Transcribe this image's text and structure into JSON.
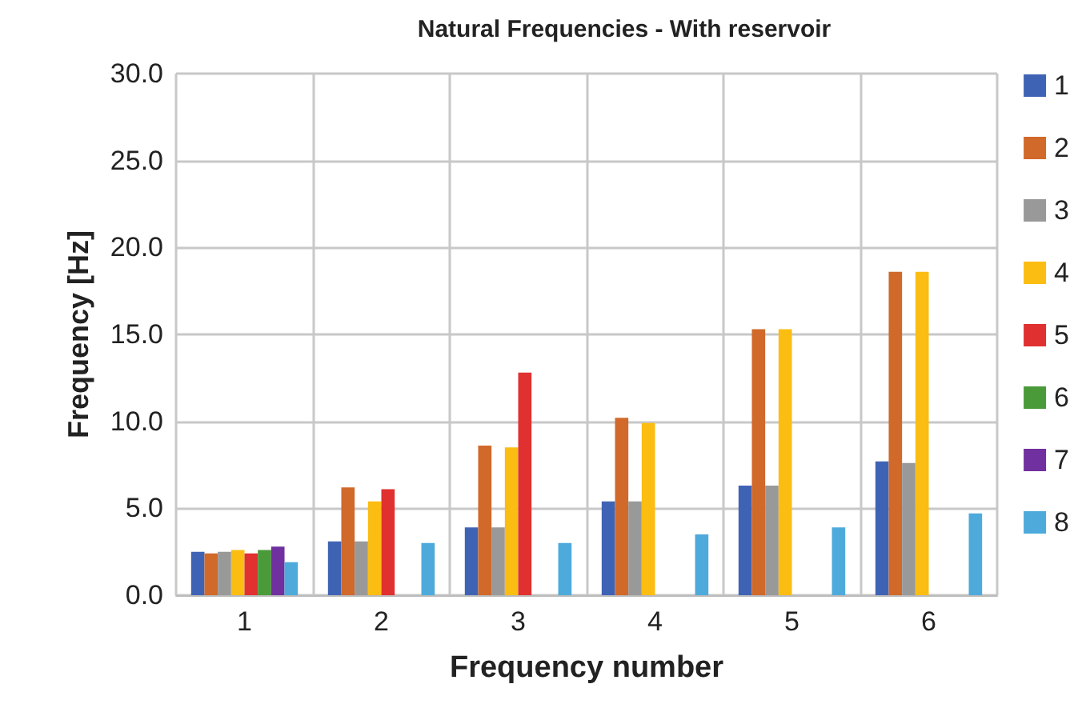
{
  "chart_data": {
    "type": "bar",
    "title": "Natural Frequencies - With reservoir",
    "xlabel": "Frequency number",
    "ylabel": "Frequency [Hz]",
    "categories": [
      "1",
      "2",
      "3",
      "4",
      "5",
      "6"
    ],
    "series": [
      {
        "name": "1",
        "color": "#3f63b4",
        "values": [
          2.5,
          3.1,
          3.9,
          5.4,
          6.3,
          7.7
        ]
      },
      {
        "name": "2",
        "color": "#d0692a",
        "values": [
          2.4,
          6.2,
          8.6,
          10.2,
          15.3,
          18.6
        ]
      },
      {
        "name": "3",
        "color": "#999999",
        "values": [
          2.5,
          3.1,
          3.9,
          5.4,
          6.3,
          7.6
        ]
      },
      {
        "name": "4",
        "color": "#fbbd12",
        "values": [
          2.6,
          5.4,
          8.5,
          9.9,
          15.3,
          18.6
        ]
      },
      {
        "name": "5",
        "color": "#e03030",
        "values": [
          2.4,
          6.1,
          12.8,
          null,
          null,
          null
        ]
      },
      {
        "name": "6",
        "color": "#4a9a3a",
        "values": [
          2.6,
          null,
          null,
          null,
          null,
          null
        ]
      },
      {
        "name": "7",
        "color": "#7030a0",
        "values": [
          2.8,
          null,
          null,
          null,
          null,
          null
        ]
      },
      {
        "name": "8",
        "color": "#4eaadb",
        "values": [
          1.9,
          3.0,
          3.0,
          3.5,
          3.9,
          4.7
        ]
      }
    ],
    "ylim": [
      0,
      30
    ],
    "yticks": [
      {
        "value": 0,
        "label": "0.0"
      },
      {
        "value": 5,
        "label": "5.0"
      },
      {
        "value": 10,
        "label": "10.0"
      },
      {
        "value": 15,
        "label": "15.0"
      },
      {
        "value": 20,
        "label": "20.0"
      },
      {
        "value": 25,
        "label": "25.0"
      },
      {
        "value": 30,
        "label": "30.0"
      }
    ],
    "grid": true,
    "legend": "right"
  }
}
